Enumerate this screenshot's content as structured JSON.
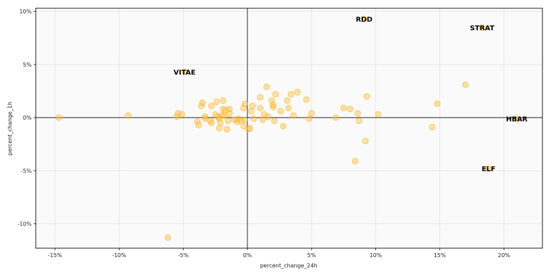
{
  "chart_data": {
    "type": "scatter",
    "xlabel": "percent_change_24h",
    "ylabel": "percent_change_1h",
    "xlim": [
      -16.5,
      23.0
    ],
    "ylim": [
      -12.3,
      10.3
    ],
    "x_ticks": [
      -15,
      -10,
      -5,
      0,
      5,
      10,
      15,
      20
    ],
    "y_ticks": [
      -10,
      -5,
      0,
      5,
      10
    ],
    "x_tick_labels": [
      "-15%",
      "-10%",
      "-5%",
      "0%",
      "5%",
      "10%",
      "15%",
      "20%"
    ],
    "y_tick_labels": [
      "-10%",
      "-5%",
      "0%",
      "5%",
      "10%"
    ],
    "grid": true,
    "reference_lines": {
      "x": 0,
      "y": 0
    },
    "colors": {
      "point_fill": "#ffc04d",
      "point_stroke": "#f5a800",
      "background": "#fafafa",
      "grid": "#e6e6e6",
      "axis": "#000000"
    },
    "points": [
      {
        "x": -14.7,
        "y": 0.0
      },
      {
        "x": -9.3,
        "y": 0.2
      },
      {
        "x": -6.2,
        "y": -11.3
      },
      {
        "x": -5.4,
        "y": 0.4
      },
      {
        "x": -5.1,
        "y": 0.3
      },
      {
        "x": -5.5,
        "y": 0.1
      },
      {
        "x": -3.9,
        "y": -0.4
      },
      {
        "x": -3.8,
        "y": -0.7
      },
      {
        "x": -3.6,
        "y": 1.1
      },
      {
        "x": -3.5,
        "y": 1.4
      },
      {
        "x": -3.3,
        "y": 0.1
      },
      {
        "x": -3.3,
        "y": -0.1
      },
      {
        "x": -2.9,
        "y": -0.3
      },
      {
        "x": -2.8,
        "y": -0.5
      },
      {
        "x": -2.8,
        "y": 1.1
      },
      {
        "x": -2.5,
        "y": 0.3
      },
      {
        "x": -2.4,
        "y": 1.5
      },
      {
        "x": -2.3,
        "y": 0.1
      },
      {
        "x": -2.2,
        "y": -0.1
      },
      {
        "x": -2.2,
        "y": -1.0
      },
      {
        "x": -2.1,
        "y": -0.5
      },
      {
        "x": -2.0,
        "y": 0.2
      },
      {
        "x": -1.9,
        "y": 1.6
      },
      {
        "x": -1.9,
        "y": 0.8
      },
      {
        "x": -1.8,
        "y": 0.2
      },
      {
        "x": -1.7,
        "y": 0.7
      },
      {
        "x": -1.6,
        "y": -1.1
      },
      {
        "x": -1.5,
        "y": -0.3
      },
      {
        "x": -1.4,
        "y": 0.4
      },
      {
        "x": -1.4,
        "y": 0.8
      },
      {
        "x": -1.0,
        "y": -0.2
      },
      {
        "x": -0.8,
        "y": -0.4
      },
      {
        "x": -0.7,
        "y": -0.1
      },
      {
        "x": -0.5,
        "y": -0.3
      },
      {
        "x": -0.3,
        "y": -0.8
      },
      {
        "x": -0.3,
        "y": 0.9
      },
      {
        "x": -0.2,
        "y": 1.3
      },
      {
        "x": -0.2,
        "y": -0.2
      },
      {
        "x": 0.1,
        "y": -1.1
      },
      {
        "x": 0.2,
        "y": -1.0
      },
      {
        "x": 0.3,
        "y": 0.6
      },
      {
        "x": 0.4,
        "y": 1.1
      },
      {
        "x": 0.5,
        "y": -0.1
      },
      {
        "x": 1.0,
        "y": 1.9
      },
      {
        "x": 1.0,
        "y": 0.9
      },
      {
        "x": 1.2,
        "y": -0.2
      },
      {
        "x": 1.3,
        "y": 0.3
      },
      {
        "x": 1.5,
        "y": 2.9
      },
      {
        "x": 1.6,
        "y": 0.1
      },
      {
        "x": 1.9,
        "y": 1.6
      },
      {
        "x": 2.0,
        "y": 1.2
      },
      {
        "x": 2.0,
        "y": 1.0
      },
      {
        "x": 2.1,
        "y": -0.3
      },
      {
        "x": 2.2,
        "y": 2.2
      },
      {
        "x": 2.6,
        "y": 0.6
      },
      {
        "x": 2.8,
        "y": -0.8
      },
      {
        "x": 3.1,
        "y": 1.6
      },
      {
        "x": 3.2,
        "y": 0.9
      },
      {
        "x": 3.4,
        "y": 2.2
      },
      {
        "x": 3.6,
        "y": 0.2
      },
      {
        "x": 3.9,
        "y": 2.4
      },
      {
        "x": 4.6,
        "y": 1.7
      },
      {
        "x": 4.8,
        "y": -0.1
      },
      {
        "x": 5.0,
        "y": 0.4
      },
      {
        "x": 6.9,
        "y": 0.0
      },
      {
        "x": 7.5,
        "y": 0.9
      },
      {
        "x": 8.0,
        "y": 0.8
      },
      {
        "x": 8.4,
        "y": -4.1
      },
      {
        "x": 8.6,
        "y": 0.4
      },
      {
        "x": 8.7,
        "y": -0.3
      },
      {
        "x": 9.2,
        "y": -2.2
      },
      {
        "x": 9.3,
        "y": 2.0
      },
      {
        "x": 10.2,
        "y": 0.3
      },
      {
        "x": 14.4,
        "y": -0.9
      },
      {
        "x": 14.8,
        "y": 1.3
      },
      {
        "x": 17.0,
        "y": 3.1
      }
    ],
    "labeled_points": [
      {
        "label": "VITAE",
        "x": -4.9,
        "y": 4.3
      },
      {
        "label": "RDD",
        "x": 9.1,
        "y": 9.3
      },
      {
        "label": "STRAT",
        "x": 18.3,
        "y": 8.5
      },
      {
        "label": "HBAR",
        "x": 21.0,
        "y": -0.1
      },
      {
        "label": "ELF",
        "x": 18.8,
        "y": -4.8
      }
    ]
  }
}
